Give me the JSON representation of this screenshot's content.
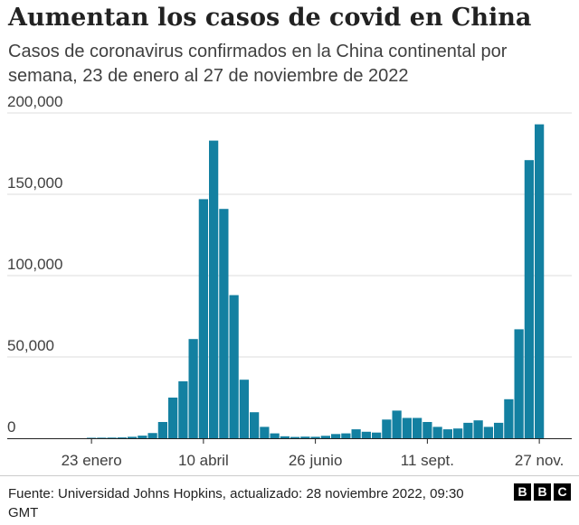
{
  "title": "Aumentan los casos de covid en China",
  "subtitle": "Casos de coronavirus confirmados en la China continental por semana, 23 de enero al 27 de noviembre de 2022",
  "source": "Fuente: Universidad Johns Hopkins, actualizado: 28 noviembre 2022, 09:30 GMT",
  "logo": [
    "B",
    "B",
    "C"
  ],
  "colors": {
    "bar": "#1380a1",
    "grid": "#dddddd",
    "axis": "#222222",
    "text": "#404040"
  },
  "chart_data": {
    "type": "bar",
    "title": "Aumentan los casos de covid en China",
    "xlabel": "",
    "ylabel": "",
    "ylim": [
      0,
      200000
    ],
    "yticks": [
      0,
      50000,
      100000,
      150000,
      200000
    ],
    "ytick_labels": [
      "0",
      "50,000",
      "100,000",
      "150,000",
      "200,000"
    ],
    "grid": "horizontal",
    "x_tick_labels": [
      {
        "label": "23 enero",
        "index": 0
      },
      {
        "label": "10 abril",
        "index": 11
      },
      {
        "label": "26 junio",
        "index": 22
      },
      {
        "label": "11 sept.",
        "index": 33
      },
      {
        "label": "27 nov.",
        "index": 44
      }
    ],
    "values": [
      300,
      350,
      400,
      500,
      900,
      1600,
      3200,
      10000,
      25000,
      35000,
      61000,
      147000,
      183000,
      141000,
      88000,
      36000,
      16000,
      7000,
      3000,
      1200,
      800,
      1000,
      900,
      1500,
      2600,
      3000,
      5500,
      4000,
      3500,
      11500,
      17000,
      12500,
      12500,
      10000,
      7000,
      5500,
      6000,
      9500,
      11000,
      7000,
      9500,
      24000,
      67000,
      171000,
      193000
    ]
  }
}
